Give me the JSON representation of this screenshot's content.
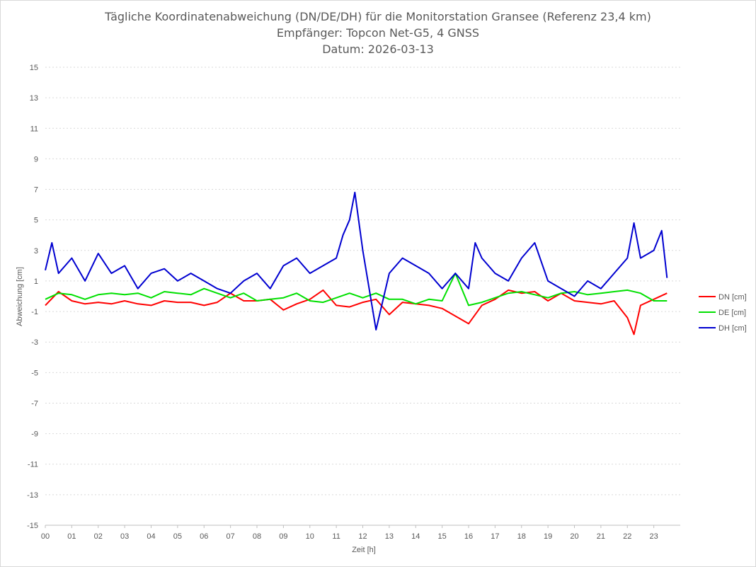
{
  "chart_data": {
    "type": "line",
    "title": [
      "Tägliche Koordinatenabweichung (DN/DE/DH) für die Monitorstation Gransee (Referenz 23,4 km)",
      "Empfänger: Topcon Net-G5, 4 GNSS",
      "Datum: 2026-03-13"
    ],
    "xlabel": "Zeit [h]",
    "ylabel": "Abweichung [cm]",
    "xlim": [
      0,
      24
    ],
    "ylim": [
      -15,
      15
    ],
    "x_ticks": [
      "00",
      "01",
      "02",
      "03",
      "04",
      "05",
      "06",
      "07",
      "08",
      "09",
      "10",
      "11",
      "12",
      "13",
      "14",
      "15",
      "16",
      "17",
      "18",
      "19",
      "20",
      "21",
      "22",
      "23"
    ],
    "y_ticks": [
      "15",
      "13",
      "11",
      "9",
      "7",
      "5",
      "3",
      "1",
      "-1",
      "-3",
      "-5",
      "-7",
      "-9",
      "-11",
      "-13",
      "-15"
    ],
    "grid": "horizontal dotted",
    "legend_position": "right",
    "series": [
      {
        "name": "DN [cm]",
        "color": "#ff0000",
        "x": [
          0,
          0.5,
          1,
          1.5,
          2,
          2.5,
          3,
          3.5,
          4,
          4.5,
          5,
          5.5,
          6,
          6.5,
          7,
          7.5,
          8,
          8.5,
          9,
          9.5,
          10,
          10.5,
          11,
          11.5,
          12,
          12.5,
          13,
          13.5,
          14,
          14.5,
          15,
          15.5,
          16,
          16.5,
          17,
          17.5,
          18,
          18.5,
          19,
          19.5,
          20,
          20.5,
          21,
          21.5,
          22,
          22.25,
          22.5,
          23,
          23.5
        ],
        "values": [
          -0.6,
          0.3,
          -0.3,
          -0.5,
          -0.4,
          -0.5,
          -0.3,
          -0.5,
          -0.6,
          -0.3,
          -0.4,
          -0.4,
          -0.6,
          -0.4,
          0.2,
          -0.3,
          -0.3,
          -0.2,
          -0.9,
          -0.5,
          -0.2,
          0.4,
          -0.6,
          -0.7,
          -0.4,
          -0.2,
          -1.2,
          -0.4,
          -0.5,
          -0.6,
          -0.8,
          -1.3,
          -1.8,
          -0.6,
          -0.2,
          0.4,
          0.2,
          0.3,
          -0.3,
          0.2,
          -0.3,
          -0.4,
          -0.5,
          -0.3,
          -1.4,
          -2.5,
          -0.6,
          -0.2,
          0.2
        ]
      },
      {
        "name": "DE [cm]",
        "color": "#00e000",
        "x": [
          0,
          0.5,
          1,
          1.5,
          2,
          2.5,
          3,
          3.5,
          4,
          4.5,
          5,
          5.5,
          6,
          6.5,
          7,
          7.5,
          8,
          8.5,
          9,
          9.5,
          10,
          10.5,
          11,
          11.5,
          12,
          12.5,
          13,
          13.5,
          14,
          14.5,
          15,
          15.5,
          16,
          16.5,
          17,
          17.5,
          18,
          18.5,
          19,
          19.5,
          20,
          20.5,
          21,
          21.5,
          22,
          22.5,
          23,
          23.5
        ],
        "values": [
          -0.2,
          0.2,
          0.1,
          -0.2,
          0.1,
          0.2,
          0.1,
          0.2,
          -0.1,
          0.3,
          0.2,
          0.1,
          0.5,
          0.2,
          -0.1,
          0.2,
          -0.3,
          -0.2,
          -0.1,
          0.2,
          -0.3,
          -0.4,
          -0.1,
          0.2,
          -0.1,
          0.2,
          -0.2,
          -0.2,
          -0.5,
          -0.2,
          -0.3,
          1.5,
          -0.6,
          -0.4,
          -0.1,
          0.2,
          0.3,
          0.1,
          -0.1,
          0.2,
          0.3,
          0.1,
          0.2,
          0.3,
          0.4,
          0.2,
          -0.3,
          -0.3
        ]
      },
      {
        "name": "DH [cm]",
        "color": "#0000d0",
        "x": [
          0,
          0.25,
          0.5,
          1,
          1.5,
          2,
          2.5,
          3,
          3.5,
          4,
          4.5,
          5,
          5.5,
          6,
          6.5,
          7,
          7.5,
          8,
          8.5,
          9,
          9.5,
          10,
          10.5,
          11,
          11.25,
          11.5,
          11.7,
          12,
          12.5,
          13,
          13.5,
          14,
          14.5,
          15,
          15.5,
          16,
          16.25,
          16.5,
          17,
          17.5,
          18,
          18.5,
          19,
          19.5,
          20,
          20.5,
          21,
          21.5,
          22,
          22.25,
          22.5,
          23,
          23.3,
          23.5
        ],
        "values": [
          1.7,
          3.5,
          1.5,
          2.5,
          1.0,
          2.8,
          1.5,
          2.0,
          0.5,
          1.5,
          1.8,
          1.0,
          1.5,
          1.0,
          0.5,
          0.2,
          1.0,
          1.5,
          0.5,
          2.0,
          2.5,
          1.5,
          2.0,
          2.5,
          4.0,
          5.0,
          6.8,
          3.0,
          -2.2,
          1.5,
          2.5,
          2.0,
          1.5,
          0.5,
          1.5,
          0.5,
          3.5,
          2.5,
          1.5,
          1.0,
          2.5,
          3.5,
          1.0,
          0.5,
          0.0,
          1.0,
          0.5,
          1.5,
          2.5,
          4.8,
          2.5,
          3.0,
          4.3,
          1.2
        ]
      }
    ]
  }
}
